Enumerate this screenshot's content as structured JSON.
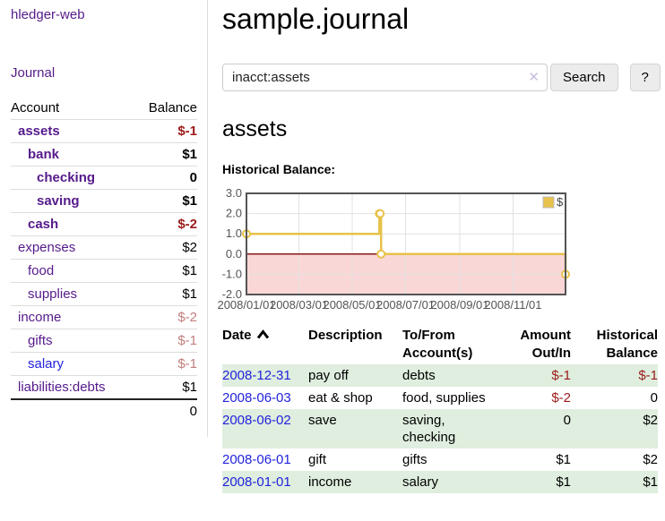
{
  "app": {
    "brand": "hledger-web",
    "nav_journal": "Journal"
  },
  "colors": {
    "link_purple": "#551A8B",
    "link_blue": "#2222DD",
    "negative_strong": "#9A1A1A",
    "negative_soft": "#C27E7E",
    "row_green": "#DFEEDE"
  },
  "sidebar": {
    "columns": {
      "account": "Account",
      "balance": "Balance"
    },
    "rows": [
      {
        "account": "assets",
        "balance": "$-1",
        "indent": 1,
        "bold": true,
        "account_color": "purple",
        "balance_color": "negative-strong"
      },
      {
        "account": "bank",
        "balance": "$1",
        "indent": 2,
        "bold": true,
        "account_color": "purple",
        "balance_color": "default"
      },
      {
        "account": "checking",
        "balance": "0",
        "indent": 3,
        "bold": true,
        "account_color": "purple",
        "balance_color": "default"
      },
      {
        "account": "saving",
        "balance": "$1",
        "indent": 3,
        "bold": true,
        "account_color": "purple",
        "balance_color": "default"
      },
      {
        "account": "cash",
        "balance": "$-2",
        "indent": 2,
        "bold": true,
        "account_color": "purple",
        "balance_color": "negative-strong"
      },
      {
        "account": "expenses",
        "balance": "$2",
        "indent": 1,
        "bold": false,
        "account_color": "purple",
        "balance_color": "default"
      },
      {
        "account": "food",
        "balance": "$1",
        "indent": 2,
        "bold": false,
        "account_color": "purple",
        "balance_color": "default"
      },
      {
        "account": "supplies",
        "balance": "$1",
        "indent": 2,
        "bold": false,
        "account_color": "purple",
        "balance_color": "default"
      },
      {
        "account": "income",
        "balance": "$-2",
        "indent": 1,
        "bold": false,
        "account_color": "purple",
        "balance_color": "negative-soft"
      },
      {
        "account": "gifts",
        "balance": "$-1",
        "indent": 2,
        "bold": false,
        "account_color": "purple",
        "balance_color": "negative-soft"
      },
      {
        "account": "salary",
        "balance": "$-1",
        "indent": 2,
        "bold": false,
        "account_color": "blue",
        "balance_color": "negative-soft"
      },
      {
        "account": "liabilities:debts",
        "balance": "$1",
        "indent": 1,
        "bold": false,
        "account_color": "purple",
        "balance_color": "default"
      }
    ],
    "total": "0"
  },
  "header": {
    "title": "sample.journal"
  },
  "search": {
    "value": "inacct:assets",
    "clear_icon": "✕",
    "button_label": "Search",
    "help_label": "?"
  },
  "account_page": {
    "title": "assets",
    "chart_label": "Historical Balance:"
  },
  "chart_data": {
    "type": "line",
    "step": true,
    "title": "Historical Balance",
    "series": [
      {
        "name": "$",
        "color": "#E8C24A",
        "points": [
          {
            "date": "2008-01-01",
            "value": 1
          },
          {
            "date": "2008-06-01",
            "value": 2
          },
          {
            "date": "2008-06-02",
            "value": 2
          },
          {
            "date": "2008-06-03",
            "value": 0
          },
          {
            "date": "2008-12-31",
            "value": -1
          }
        ]
      }
    ],
    "x_range": [
      "2008-01-01",
      "2008-12-31"
    ],
    "x_tick_labels": [
      "2008/01/01",
      "2008/03/01",
      "2008/05/01",
      "2008/07/01",
      "2008/09/01",
      "2008/11/01"
    ],
    "y_ticks": [
      3.0,
      2.0,
      1.0,
      0.0,
      -1.0,
      -2.0
    ],
    "ylim": [
      -2,
      3
    ],
    "grid": true,
    "legend": {
      "label": "$",
      "position": "top-right"
    },
    "negative_region_color": "#FAD7D7",
    "zero_line_color": "#8B1A1A",
    "plot_border_color": "#545454",
    "grid_color": "#E2E2E2",
    "tick_label_color": "#545454"
  },
  "register": {
    "headers": [
      {
        "line1": "Date",
        "line2": "",
        "align": "left",
        "sorted": "asc"
      },
      {
        "line1": "Description",
        "line2": "",
        "align": "left"
      },
      {
        "line1": "To/From",
        "line2": "Account(s)",
        "align": "left"
      },
      {
        "line1": "Amount",
        "line2": "Out/In",
        "align": "right"
      },
      {
        "line1": "Historical",
        "line2": "Balance",
        "align": "right"
      }
    ],
    "rows": [
      {
        "date": "2008-12-31",
        "description": "pay off",
        "accounts": "debts",
        "amount": "$-1",
        "amount_negative": true,
        "historical": "$-1",
        "historical_negative": true,
        "shaded": true
      },
      {
        "date": "2008-06-03",
        "description": "eat & shop",
        "accounts": "food, supplies",
        "amount": "$-2",
        "amount_negative": true,
        "historical": "0",
        "historical_negative": false,
        "shaded": false
      },
      {
        "date": "2008-06-02",
        "description": "save",
        "accounts": "saving, checking",
        "amount": "0",
        "amount_negative": false,
        "historical": "$2",
        "historical_negative": false,
        "shaded": true
      },
      {
        "date": "2008-06-01",
        "description": "gift",
        "accounts": "gifts",
        "amount": "$1",
        "amount_negative": false,
        "historical": "$2",
        "historical_negative": false,
        "shaded": false
      },
      {
        "date": "2008-01-01",
        "description": "income",
        "accounts": "salary",
        "amount": "$1",
        "amount_negative": false,
        "historical": "$1",
        "historical_negative": false,
        "shaded": true
      }
    ]
  }
}
